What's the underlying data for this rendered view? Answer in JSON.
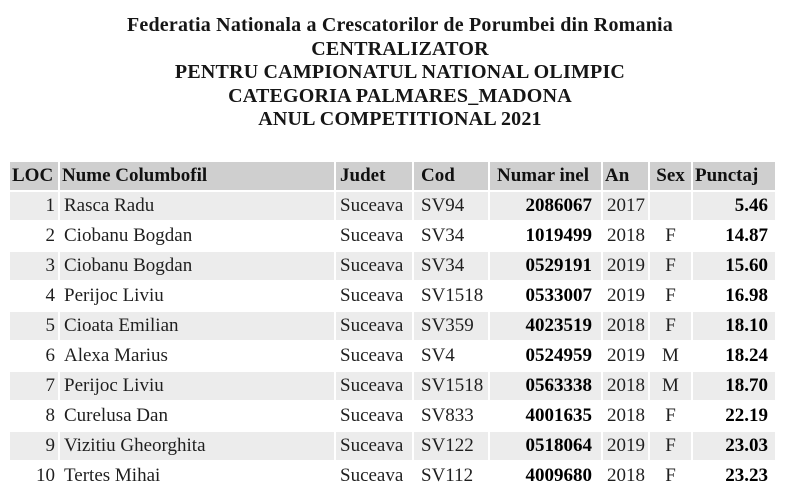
{
  "header": {
    "title_lines": [
      "Federatia Nationala a Crescatorilor de Porumbei din Romania",
      "CENTRALIZATOR",
      "PENTRU CAMPIONATUL NATIONAL OLIMPIC",
      "CATEGORIA PALMARES_MADONA",
      "ANUL COMPETITIONAL 2021"
    ]
  },
  "table": {
    "columns": [
      "LOC",
      "Nume Columbofil",
      "Judet",
      "Cod",
      "Numar inel",
      "An",
      "Sex",
      "Punctaj"
    ],
    "rows": [
      {
        "loc": "1",
        "nume": "Rasca Radu",
        "judet": "Suceava",
        "cod": "SV94",
        "inel": "2086067",
        "an": "2017",
        "sex": "",
        "punctaj": "5.46"
      },
      {
        "loc": "2",
        "nume": "Ciobanu Bogdan",
        "judet": "Suceava",
        "cod": "SV34",
        "inel": "1019499",
        "an": "2018",
        "sex": "F",
        "punctaj": "14.87"
      },
      {
        "loc": "3",
        "nume": "Ciobanu Bogdan",
        "judet": "Suceava",
        "cod": "SV34",
        "inel": "0529191",
        "an": "2019",
        "sex": "F",
        "punctaj": "15.60"
      },
      {
        "loc": "4",
        "nume": "Perijoc Liviu",
        "judet": "Suceava",
        "cod": "SV1518",
        "inel": "0533007",
        "an": "2019",
        "sex": "F",
        "punctaj": "16.98"
      },
      {
        "loc": "5",
        "nume": "Cioata Emilian",
        "judet": "Suceava",
        "cod": "SV359",
        "inel": "4023519",
        "an": "2018",
        "sex": "F",
        "punctaj": "18.10"
      },
      {
        "loc": "6",
        "nume": "Alexa Marius",
        "judet": "Suceava",
        "cod": "SV4",
        "inel": "0524959",
        "an": "2019",
        "sex": "M",
        "punctaj": "18.24"
      },
      {
        "loc": "7",
        "nume": "Perijoc Liviu",
        "judet": "Suceava",
        "cod": "SV1518",
        "inel": "0563338",
        "an": "2018",
        "sex": "M",
        "punctaj": "18.70"
      },
      {
        "loc": "8",
        "nume": "Curelusa Dan",
        "judet": "Suceava",
        "cod": "SV833",
        "inel": "4001635",
        "an": "2018",
        "sex": "F",
        "punctaj": "22.19"
      },
      {
        "loc": "9",
        "nume": "Vizitiu Gheorghita",
        "judet": "Suceava",
        "cod": "SV122",
        "inel": "0518064",
        "an": "2019",
        "sex": "F",
        "punctaj": "23.03"
      },
      {
        "loc": "10",
        "nume": "Tertes Mihai",
        "judet": "Suceava",
        "cod": "SV112",
        "inel": "4009680",
        "an": "2018",
        "sex": "F",
        "punctaj": "23.23"
      }
    ]
  },
  "colors": {
    "header_row_bg": "#cfcfcf",
    "odd_row_bg": "#ececec",
    "even_row_bg": "#ffffff",
    "text": "#1f1f1f"
  }
}
